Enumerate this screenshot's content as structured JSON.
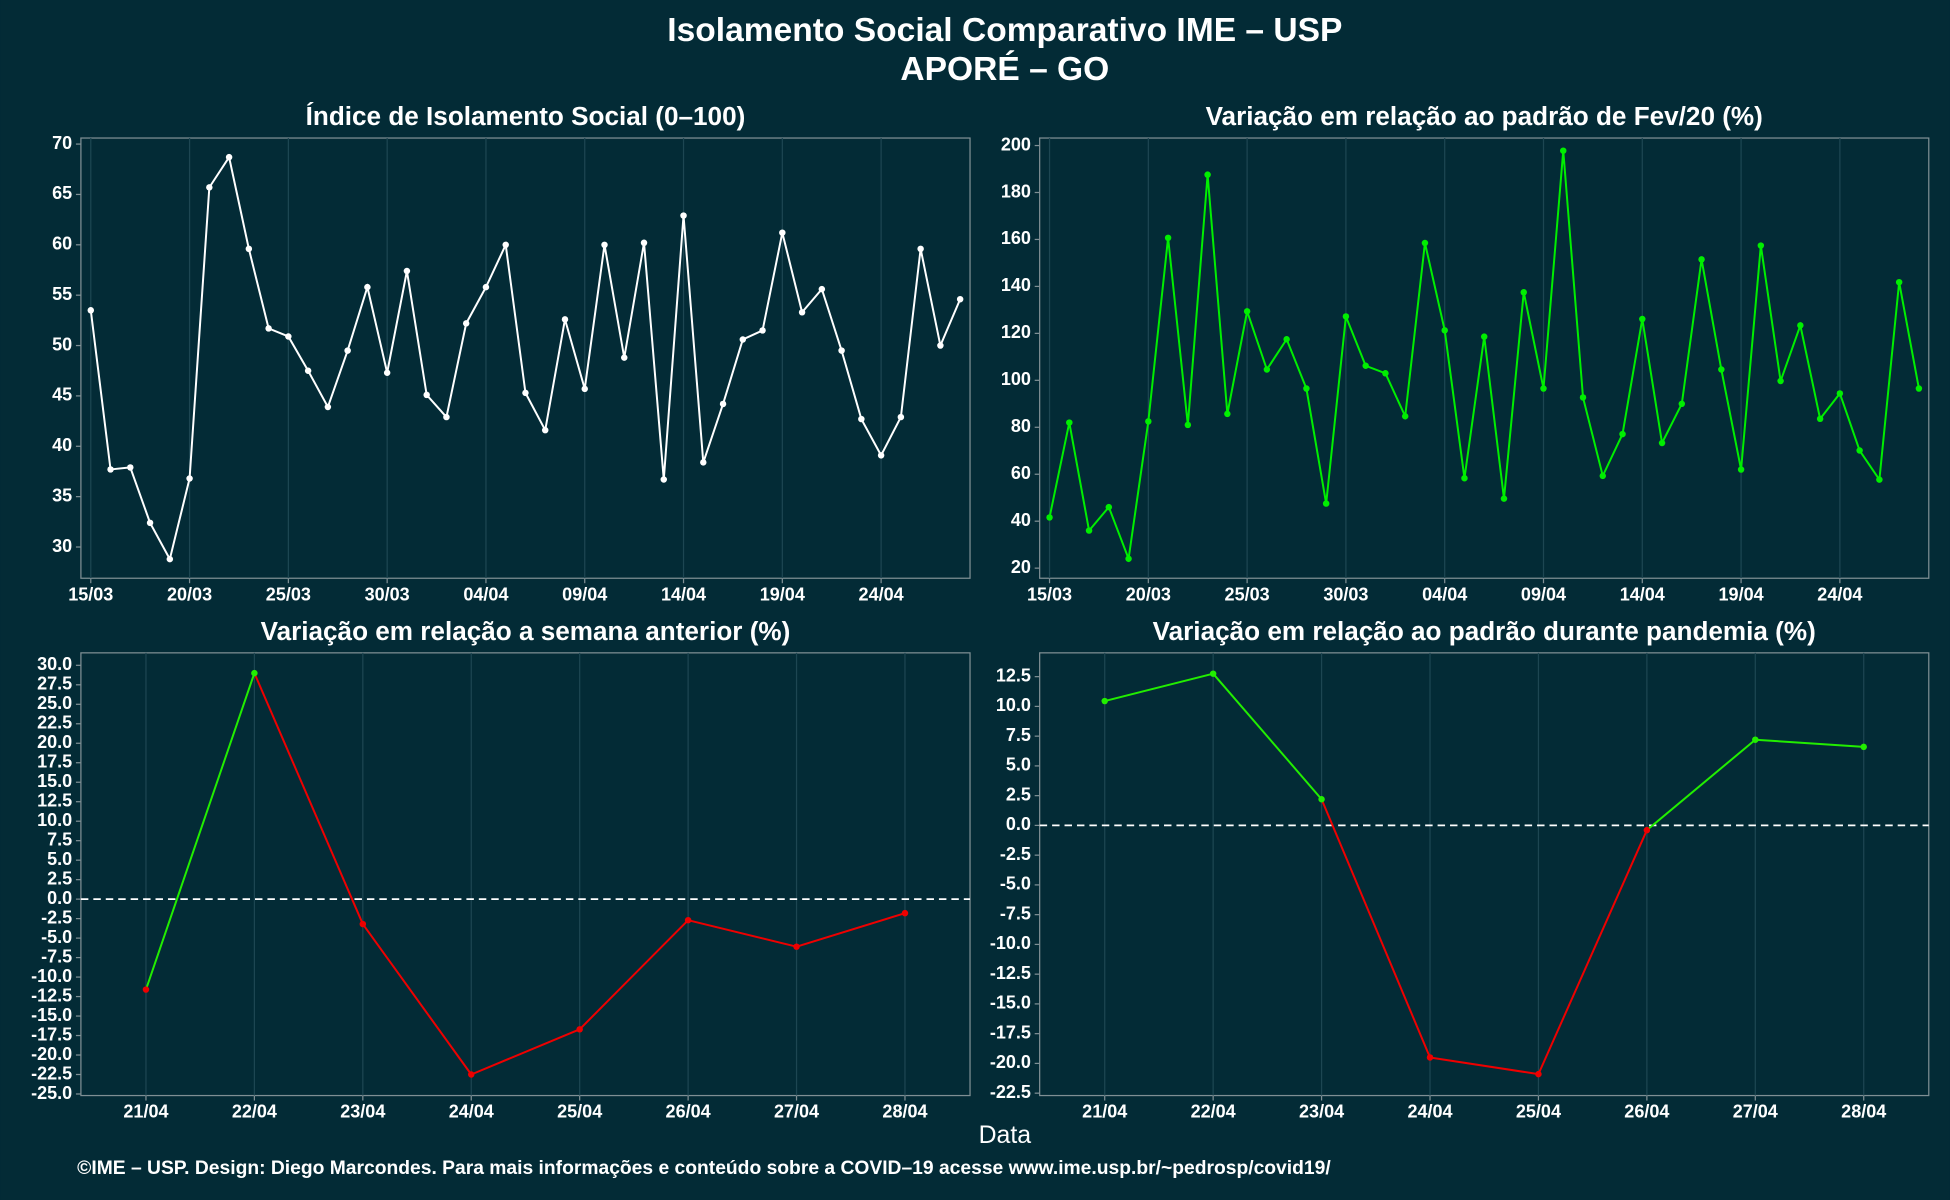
{
  "title": "Isolamento Social Comparativo IME – USP",
  "subtitle": "APORÉ – GO",
  "x_label": "Data",
  "caption": "©IME – USP. Design: Diego Marcondes. Para mais informações e conteúdo sobre a COVID–19 acesse www.ime.usp.br/~pedrosp/covid19/",
  "chart_data": [
    {
      "type": "line",
      "title": "Índice de Isolamento Social (0–100)",
      "categories": [
        "15/03",
        null,
        null,
        null,
        null,
        "20/03",
        null,
        null,
        null,
        null,
        "25/03",
        null,
        null,
        null,
        null,
        "30/03",
        null,
        null,
        null,
        null,
        "04/04",
        null,
        null,
        null,
        null,
        "09/04",
        null,
        null,
        null,
        null,
        "14/04",
        null,
        null,
        null,
        null,
        "19/04",
        null,
        null,
        null,
        null,
        "24/04",
        null,
        null,
        null,
        null
      ],
      "values": [
        53.5,
        37.7,
        37.9,
        32.4,
        28.8,
        36.8,
        65.7,
        68.7,
        59.6,
        51.7,
        50.9,
        47.5,
        43.9,
        49.5,
        55.8,
        47.3,
        57.4,
        45.1,
        42.9,
        52.2,
        55.8,
        60.0,
        45.3,
        41.6,
        52.6,
        45.7,
        60.0,
        48.8,
        60.2,
        36.7,
        62.9,
        38.4,
        44.2,
        50.6,
        51.5,
        61.2,
        53.3,
        55.6,
        49.5,
        42.7,
        39.1,
        42.9,
        59.6,
        50.0,
        54.6
      ],
      "color": "#ffffff",
      "ylim": [
        26.9,
        70.6
      ],
      "yticks": [
        30,
        35,
        40,
        45,
        50,
        55,
        60,
        65,
        70
      ],
      "grid": true
    },
    {
      "type": "line",
      "title": "Variação em relação ao padrão de Fev/20 (%)",
      "categories": [
        "15/03",
        null,
        null,
        null,
        null,
        "20/03",
        null,
        null,
        null,
        null,
        "25/03",
        null,
        null,
        null,
        null,
        "30/03",
        null,
        null,
        null,
        null,
        "04/04",
        null,
        null,
        null,
        null,
        "09/04",
        null,
        null,
        null,
        null,
        "14/04",
        null,
        null,
        null,
        null,
        "19/04",
        null,
        null,
        null,
        null,
        "24/04",
        null,
        null,
        null,
        null
      ],
      "values": [
        41.6,
        82,
        36,
        46,
        24,
        82.5,
        160.7,
        81,
        187.6,
        85.7,
        129.4,
        104.6,
        117.5,
        96.5,
        47.5,
        127.2,
        106.2,
        103,
        84.7,
        158.5,
        121.3,
        58.3,
        118.6,
        49.6,
        137.5,
        96.5,
        197.8,
        92.7,
        59.3,
        77.1,
        126.1,
        73.3,
        90,
        151.5,
        104.6,
        62,
        157.4,
        99.7,
        123.4,
        83.6,
        94.4,
        70.1,
        57.7,
        141.8,
        96.5
      ],
      "color": "#00ee00",
      "ylim": [
        15.7,
        203.2
      ],
      "yticks": [
        20,
        40,
        60,
        80,
        100,
        120,
        140,
        160,
        180,
        200
      ],
      "grid": true
    },
    {
      "type": "line",
      "title": "Variação em relação a semana anterior (%)",
      "categories": [
        "21/04",
        "22/04",
        "23/04",
        "24/04",
        "25/04",
        "26/04",
        "27/04",
        "28/04"
      ],
      "values": [
        -11.6,
        29.0,
        -3.2,
        -22.5,
        -16.7,
        -2.7,
        -6.1,
        -1.8
      ],
      "positive_color": "#22ee00",
      "negative_color": "#ee0000",
      "reference_line": 0,
      "ylim": [
        -25.2,
        31.6
      ],
      "yticks": [
        {
          "value": -25,
          "label": "-25.0"
        },
        -22.5,
        {
          "value": -20,
          "label": "-20.0"
        },
        -17.5,
        {
          "value": -15,
          "label": "-15.0"
        },
        -12.5,
        {
          "value": -10,
          "label": "-10.0"
        },
        -7.5,
        {
          "value": -5,
          "label": "-5.0"
        },
        -2.5,
        {
          "value": 0,
          "label": "0.0"
        },
        2.5,
        {
          "value": 5,
          "label": "5.0"
        },
        7.5,
        {
          "value": 10,
          "label": "10.0"
        },
        12.5,
        {
          "value": 15,
          "label": "15.0"
        },
        17.5,
        {
          "value": 20,
          "label": "20.0"
        },
        22.5,
        {
          "value": 25,
          "label": "25.0"
        },
        27.5,
        {
          "value": 30,
          "label": "30.0"
        }
      ],
      "grid": true
    },
    {
      "type": "line",
      "title": "Variação em relação ao padrão durante pandemia (%)",
      "categories": [
        "21/04",
        "22/04",
        "23/04",
        "24/04",
        "25/04",
        "26/04",
        "27/04",
        "28/04"
      ],
      "values": [
        10.45,
        12.75,
        2.2,
        -19.5,
        -20.9,
        -0.4,
        7.2,
        6.6
      ],
      "positive_color": "#22ee00",
      "negative_color": "#ee0000",
      "reference_line": 0,
      "ylim": [
        -22.7,
        14.5
      ],
      "yticks": [
        -22.5,
        {
          "value": -20,
          "label": "-20.0"
        },
        -17.5,
        {
          "value": -15,
          "label": "-15.0"
        },
        -12.5,
        {
          "value": -10,
          "label": "-10.0"
        },
        -7.5,
        {
          "value": -5,
          "label": "-5.0"
        },
        -2.5,
        {
          "value": 0,
          "label": "0.0"
        },
        2.5,
        {
          "value": 5,
          "label": "5.0"
        },
        7.5,
        {
          "value": 10,
          "label": "10.0"
        },
        12.5
      ],
      "grid": true
    }
  ]
}
